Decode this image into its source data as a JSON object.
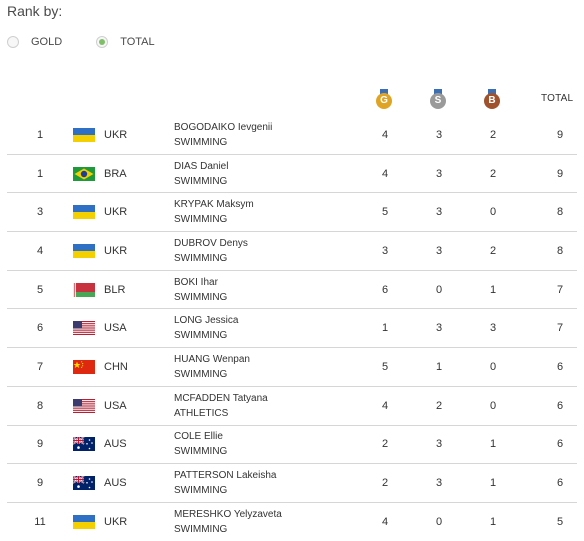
{
  "rank_by": {
    "label": "Rank by:",
    "options": [
      {
        "label": "GOLD",
        "selected": false
      },
      {
        "label": "TOTAL",
        "selected": true
      }
    ]
  },
  "headers": {
    "gold_icon": "G",
    "silver_icon": "S",
    "bronze_icon": "B",
    "total": "TOTAL"
  },
  "colors": {
    "gold": "#e0a424",
    "silver": "#9a9a9a",
    "bronze": "#a0522d",
    "radio_selected": "#7fbf6a"
  },
  "rows": [
    {
      "rank": "1",
      "flag": "ukraine-flag",
      "code": "UKR",
      "name": "BOGODAIKO Ievgenii",
      "sport": "SWIMMING",
      "gold": "4",
      "silver": "3",
      "bronze": "2",
      "total": "9"
    },
    {
      "rank": "1",
      "flag": "brazil-flag",
      "code": "BRA",
      "name": "DIAS Daniel",
      "sport": "SWIMMING",
      "gold": "4",
      "silver": "3",
      "bronze": "2",
      "total": "9"
    },
    {
      "rank": "3",
      "flag": "ukraine-flag",
      "code": "UKR",
      "name": "KRYPAK Maksym",
      "sport": "SWIMMING",
      "gold": "5",
      "silver": "3",
      "bronze": "0",
      "total": "8"
    },
    {
      "rank": "4",
      "flag": "ukraine-flag",
      "code": "UKR",
      "name": "DUBROV Denys",
      "sport": "SWIMMING",
      "gold": "3",
      "silver": "3",
      "bronze": "2",
      "total": "8"
    },
    {
      "rank": "5",
      "flag": "belarus-flag",
      "code": "BLR",
      "name": "BOKI Ihar",
      "sport": "SWIMMING",
      "gold": "6",
      "silver": "0",
      "bronze": "1",
      "total": "7"
    },
    {
      "rank": "6",
      "flag": "usa-flag",
      "code": "USA",
      "name": "LONG Jessica",
      "sport": "SWIMMING",
      "gold": "1",
      "silver": "3",
      "bronze": "3",
      "total": "7"
    },
    {
      "rank": "7",
      "flag": "china-flag",
      "code": "CHN",
      "name": "HUANG Wenpan",
      "sport": "SWIMMING",
      "gold": "5",
      "silver": "1",
      "bronze": "0",
      "total": "6"
    },
    {
      "rank": "8",
      "flag": "usa-flag",
      "code": "USA",
      "name": "MCFADDEN Tatyana",
      "sport": "ATHLETICS",
      "gold": "4",
      "silver": "2",
      "bronze": "0",
      "total": "6"
    },
    {
      "rank": "9",
      "flag": "australia-flag",
      "code": "AUS",
      "name": "COLE Ellie",
      "sport": "SWIMMING",
      "gold": "2",
      "silver": "3",
      "bronze": "1",
      "total": "6"
    },
    {
      "rank": "9",
      "flag": "australia-flag",
      "code": "AUS",
      "name": "PATTERSON Lakeisha",
      "sport": "SWIMMING",
      "gold": "2",
      "silver": "3",
      "bronze": "1",
      "total": "6"
    },
    {
      "rank": "11",
      "flag": "ukraine-flag",
      "code": "UKR",
      "name": "MERESHKO Yelyzaveta",
      "sport": "SWIMMING",
      "gold": "4",
      "silver": "0",
      "bronze": "1",
      "total": "5"
    }
  ]
}
